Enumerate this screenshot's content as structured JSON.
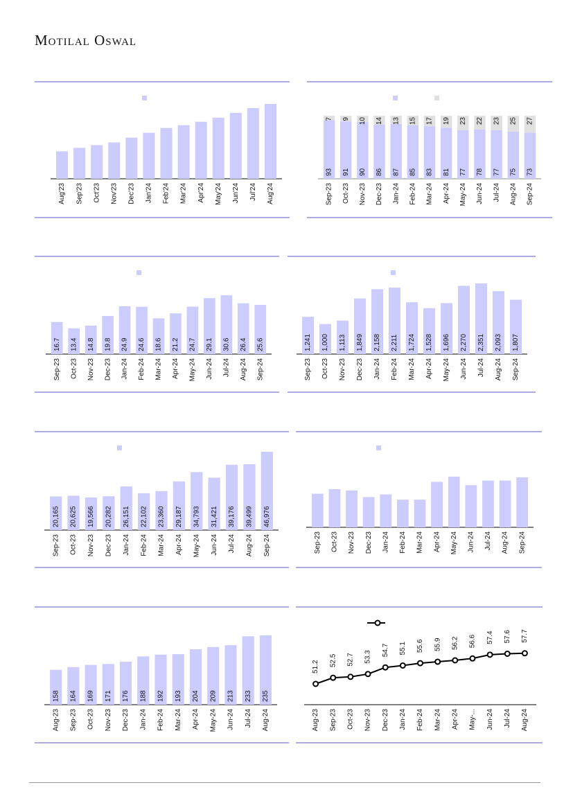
{
  "header": {
    "brand": "Motilal Oswal"
  },
  "colors": {
    "bar": "#ccccff",
    "bar_secondary": "#e0e0e0",
    "rule": "#7b7bd0",
    "line": "#000000"
  },
  "chart_data": [
    {
      "type": "bar",
      "categories": [
        "Aug'23",
        "Sep'23",
        "Oct'23",
        "Nov'23",
        "Dec'23",
        "Jan'24",
        "Feb'24",
        "Mar'24",
        "Apr'24",
        "May'24",
        "Jun'24",
        "Jul'24",
        "Aug'24"
      ],
      "values": [
        40,
        45,
        49,
        53,
        60,
        67,
        74,
        78,
        83,
        89,
        96,
        103,
        109
      ],
      "values_estimated": true,
      "show_labels": false,
      "ylim": [
        0,
        110
      ]
    },
    {
      "type": "bar",
      "stacked": true,
      "categories": [
        "Sep-23",
        "Oct-23",
        "Nov-23",
        "Dec-23",
        "Jan-24",
        "Feb-24",
        "Mar-24",
        "Apr-24",
        "May-24",
        "Jun-24",
        "Jul-24",
        "Aug-24",
        "Sep-24"
      ],
      "series": [
        {
          "name": "",
          "values": [
            93,
            91,
            90,
            86,
            87,
            85,
            83,
            81,
            77,
            78,
            77,
            75,
            73
          ]
        },
        {
          "name": "",
          "values": [
            7,
            9,
            10,
            14,
            13,
            15,
            17,
            19,
            23,
            22,
            23,
            25,
            27
          ]
        }
      ],
      "ylim": [
        0,
        100
      ]
    },
    {
      "type": "bar",
      "categories": [
        "Sep-23",
        "Oct-23",
        "Nov-23",
        "Dec-23",
        "Jan-24",
        "Feb-24",
        "Mar-24",
        "Apr-24",
        "May-24",
        "Jun-24",
        "Jul-24",
        "Aug-24",
        "Sep-24"
      ],
      "values": [
        16.7,
        13.4,
        14.8,
        19.8,
        24.9,
        24.6,
        18.6,
        21.2,
        24.7,
        29.1,
        30.6,
        26.4,
        25.6
      ],
      "labels": [
        "16.7",
        "13.4",
        "14.8",
        "19.8",
        "24.9",
        "24.6",
        "18.6",
        "21.2",
        "24.7",
        "29.1",
        "30.6",
        "26.4",
        "25.6"
      ],
      "ylim": [
        0,
        31
      ]
    },
    {
      "type": "bar",
      "categories": [
        "Sep-23",
        "Oct-23",
        "Nov-23",
        "Dec-23",
        "Jan-24",
        "Feb-24",
        "Mar-24",
        "Apr-24",
        "May-24",
        "Jun-24",
        "Jul-24",
        "Aug-24",
        "Sep-24"
      ],
      "values": [
        1241,
        1000,
        1113,
        1849,
        2158,
        2211,
        1724,
        1528,
        1696,
        2270,
        2351,
        2093,
        1807
      ],
      "labels": [
        "1,241",
        "1,000",
        "1,113",
        "1,849",
        "2,158",
        "2,211",
        "1,724",
        "1,528",
        "1,696",
        "2,270",
        "2,351",
        "2,093",
        "1,807"
      ],
      "ylim": [
        0,
        2351
      ]
    },
    {
      "type": "bar",
      "categories": [
        "Sep-23",
        "Oct-23",
        "Nov-23",
        "Dec-23",
        "Jan-24",
        "Feb-24",
        "Mar-24",
        "Apr-24",
        "May-24",
        "Jun-24",
        "Jul-24",
        "Aug-24",
        "Sep-24"
      ],
      "values": [
        20165,
        20625,
        19566,
        20282,
        26151,
        22102,
        23360,
        29187,
        34793,
        31421,
        39176,
        39499,
        46976
      ],
      "labels": [
        "20,165",
        "20,625",
        "19,566",
        "20,282",
        "26,151",
        "22,102",
        "23,360",
        "29,187",
        "34,793",
        "31,421",
        "39,176",
        "39,499",
        "46,976"
      ],
      "ylim": [
        0,
        46976
      ]
    },
    {
      "type": "bar",
      "categories": [
        "Sep-23",
        "Oct-23",
        "Nov-23",
        "Dec-23",
        "Jan-24",
        "Feb-24",
        "Mar-24",
        "Apr-24",
        "May-24",
        "Jun-24",
        "Jul-24",
        "Aug-24",
        "Sep-24"
      ],
      "values": [
        51,
        58,
        56,
        46,
        50,
        42,
        42,
        69,
        77,
        64,
        71,
        71,
        76
      ],
      "values_estimated": true,
      "show_labels": false,
      "ylim": [
        0,
        80
      ]
    },
    {
      "type": "bar",
      "categories": [
        "Aug-23",
        "Sep-23",
        "Oct-23",
        "Nov-23",
        "Dec-23",
        "Jan-24",
        "Feb-24",
        "Mar-24",
        "Apr-24",
        "May-24",
        "Jun-24",
        "Jul-24",
        "Aug-24"
      ],
      "values": [
        158,
        164,
        169,
        171,
        176,
        188,
        192,
        193,
        204,
        209,
        213,
        233,
        235
      ],
      "labels": [
        "158",
        "164",
        "169",
        "171",
        "176",
        "188",
        "192",
        "193",
        "204",
        "209",
        "213",
        "233",
        "235"
      ],
      "ylim": [
        80,
        235
      ]
    },
    {
      "type": "line",
      "categories": [
        "Aug-23",
        "Sep-23",
        "Oct-23",
        "Nov-23",
        "Dec-23",
        "Jan-24",
        "Feb-24",
        "Mar-24",
        "Apr-24",
        "May-...",
        "Jun-24",
        "Jul-24",
        "Aug-24"
      ],
      "values": [
        51.2,
        52.5,
        52.7,
        53.3,
        54.7,
        55.1,
        55.6,
        55.9,
        56.2,
        56.6,
        57.4,
        57.6,
        57.7
      ],
      "labels": [
        "51.2",
        "52.5",
        "52.7",
        "53.3",
        "54.7",
        "55.1",
        "55.6",
        "55.9",
        "56.2",
        "56.6",
        "57.4",
        "57.6",
        "57.7"
      ]
    }
  ]
}
